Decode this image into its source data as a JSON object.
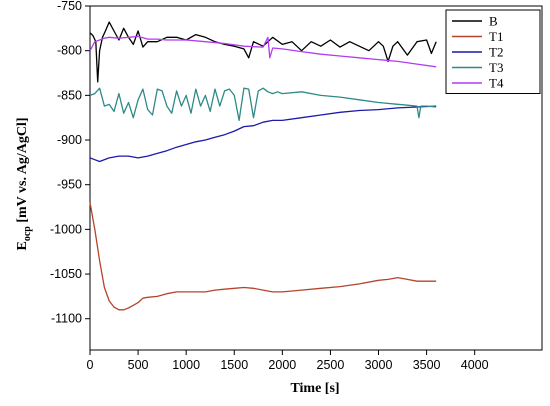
{
  "chart_data": {
    "type": "line",
    "xlabel": "Time [s]",
    "ylabel_main": "E",
    "ylabel_sub": "ocp",
    "ylabel_rest": " [mV vs. Ag/AgCl]",
    "xlim": [
      0,
      4700
    ],
    "ylim": [
      -1135,
      -750
    ],
    "xticks": [
      0,
      500,
      1000,
      1500,
      2000,
      2500,
      3000,
      3500,
      4000
    ],
    "yticks": [
      -750,
      -800,
      -850,
      -900,
      -950,
      -1000,
      -1050,
      -1100
    ],
    "grid": false,
    "legend_position": "top-right",
    "series": [
      {
        "name": "B",
        "color": "#000000",
        "x": [
          0,
          30,
          60,
          80,
          100,
          130,
          160,
          200,
          250,
          300,
          350,
          400,
          450,
          500,
          550,
          600,
          700,
          800,
          900,
          1000,
          1100,
          1200,
          1300,
          1400,
          1500,
          1600,
          1650,
          1700,
          1800,
          1900,
          2000,
          2100,
          2200,
          2300,
          2400,
          2500,
          2600,
          2700,
          2800,
          2900,
          3000,
          3050,
          3100,
          3150,
          3200,
          3300,
          3400,
          3500,
          3550,
          3600
        ],
        "y": [
          -780,
          -783,
          -790,
          -835,
          -800,
          -785,
          -778,
          -768,
          -778,
          -788,
          -775,
          -785,
          -793,
          -778,
          -796,
          -790,
          -790,
          -785,
          -785,
          -788,
          -782,
          -785,
          -790,
          -793,
          -795,
          -798,
          -808,
          -790,
          -795,
          -785,
          -793,
          -790,
          -800,
          -790,
          -795,
          -788,
          -796,
          -790,
          -795,
          -800,
          -790,
          -795,
          -812,
          -795,
          -790,
          -805,
          -790,
          -788,
          -803,
          -790
        ]
      },
      {
        "name": "T1",
        "color": "#b5442c",
        "x": [
          0,
          50,
          100,
          150,
          200,
          250,
          300,
          350,
          400,
          450,
          500,
          550,
          600,
          700,
          800,
          900,
          1000,
          1100,
          1200,
          1300,
          1400,
          1500,
          1600,
          1700,
          1800,
          1900,
          2000,
          2200,
          2400,
          2600,
          2800,
          3000,
          3100,
          3200,
          3300,
          3400,
          3500,
          3600
        ],
        "y": [
          -970,
          -1000,
          -1035,
          -1065,
          -1080,
          -1087,
          -1090,
          -1090,
          -1088,
          -1085,
          -1082,
          -1077,
          -1076,
          -1075,
          -1072,
          -1070,
          -1070,
          -1070,
          -1070,
          -1068,
          -1067,
          -1066,
          -1065,
          -1066,
          -1068,
          -1070,
          -1070,
          -1068,
          -1066,
          -1064,
          -1061,
          -1057,
          -1056,
          -1054,
          -1056,
          -1058,
          -1058,
          -1058
        ]
      },
      {
        "name": "T2",
        "color": "#1c1aa8",
        "x": [
          0,
          50,
          100,
          200,
          300,
          400,
          500,
          600,
          700,
          800,
          900,
          1000,
          1100,
          1200,
          1300,
          1400,
          1500,
          1600,
          1700,
          1800,
          1900,
          2000,
          2200,
          2400,
          2600,
          2800,
          3000,
          3200,
          3400,
          3600
        ],
        "y": [
          -920,
          -922,
          -924,
          -920,
          -918,
          -918,
          -920,
          -918,
          -915,
          -912,
          -908,
          -905,
          -902,
          -900,
          -897,
          -894,
          -890,
          -885,
          -884,
          -880,
          -878,
          -878,
          -875,
          -872,
          -869,
          -867,
          -866,
          -864,
          -863,
          -862
        ]
      },
      {
        "name": "T3",
        "color": "#2e8a86",
        "x": [
          0,
          50,
          100,
          150,
          200,
          250,
          300,
          350,
          400,
          450,
          500,
          550,
          600,
          650,
          700,
          750,
          800,
          850,
          900,
          950,
          1000,
          1050,
          1100,
          1150,
          1200,
          1250,
          1300,
          1350,
          1400,
          1450,
          1500,
          1550,
          1600,
          1650,
          1700,
          1750,
          1800,
          1850,
          1900,
          1950,
          2000,
          2200,
          2400,
          2600,
          2800,
          3000,
          3200,
          3300,
          3400,
          3420,
          3440,
          3500,
          3600
        ],
        "y": [
          -850,
          -848,
          -842,
          -862,
          -860,
          -868,
          -848,
          -870,
          -858,
          -875,
          -855,
          -843,
          -866,
          -872,
          -843,
          -845,
          -862,
          -870,
          -845,
          -862,
          -850,
          -870,
          -843,
          -862,
          -850,
          -868,
          -843,
          -862,
          -845,
          -843,
          -850,
          -878,
          -842,
          -843,
          -875,
          -845,
          -842,
          -846,
          -848,
          -846,
          -848,
          -846,
          -850,
          -852,
          -855,
          -858,
          -860,
          -861,
          -862,
          -875,
          -862,
          -862,
          -863
        ]
      },
      {
        "name": "T4",
        "color": "#b13cf0",
        "x": [
          0,
          50,
          100,
          150,
          200,
          300,
          400,
          500,
          600,
          700,
          800,
          900,
          1000,
          1200,
          1400,
          1600,
          1800,
          1850,
          1870,
          1900,
          2000,
          2200,
          2400,
          2600,
          2800,
          3000,
          3200,
          3400,
          3600
        ],
        "y": [
          -800,
          -790,
          -788,
          -786,
          -785,
          -786,
          -785,
          -784,
          -787,
          -787,
          -788,
          -788,
          -788,
          -790,
          -792,
          -795,
          -796,
          -785,
          -808,
          -797,
          -798,
          -801,
          -804,
          -806,
          -808,
          -810,
          -812,
          -815,
          -818
        ]
      }
    ]
  }
}
